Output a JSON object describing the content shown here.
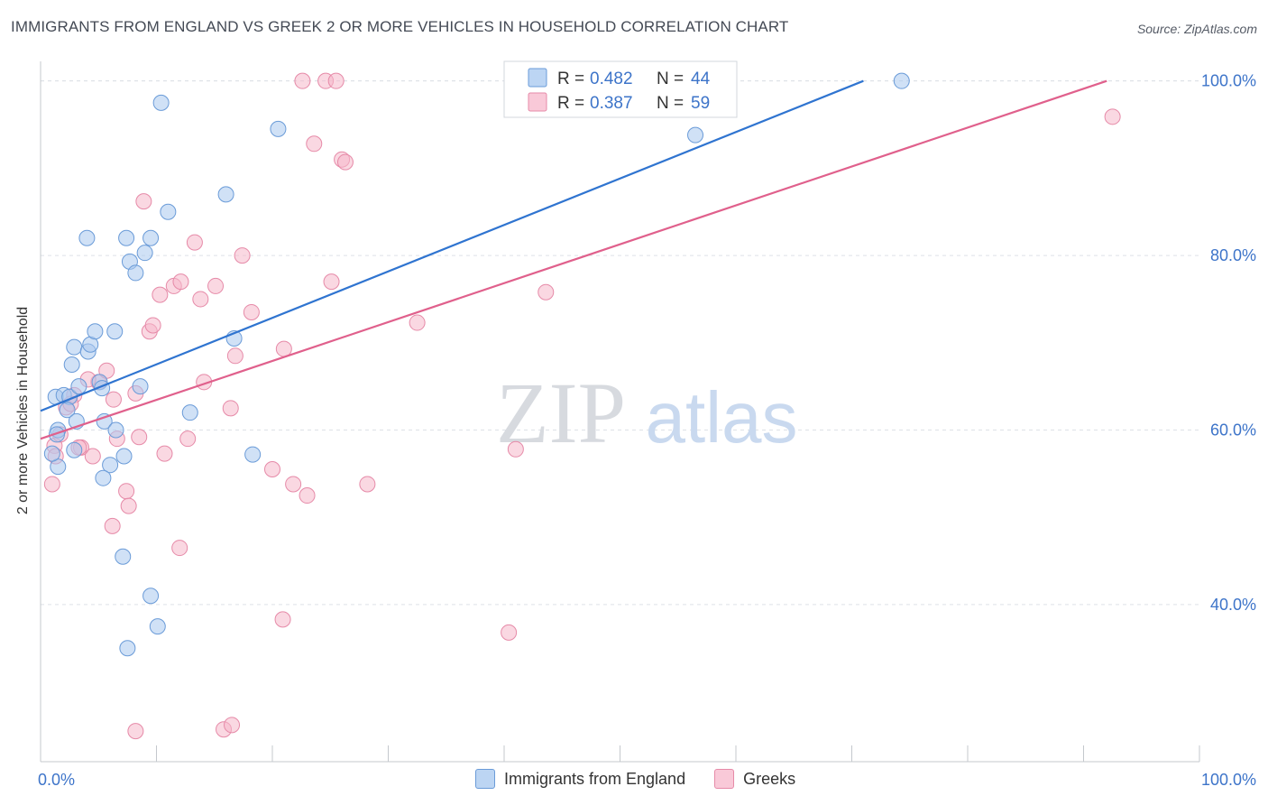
{
  "title": "IMMIGRANTS FROM ENGLAND VS GREEK 2 OR MORE VEHICLES IN HOUSEHOLD CORRELATION CHART",
  "source": "Source: ZipAtlas.com",
  "watermark": {
    "zip": "ZIP",
    "atlas": "atlas"
  },
  "legend": {
    "series1": "Immigrants from England",
    "series2": "Greeks"
  },
  "stats": {
    "r_label": "R =",
    "n_label": "N =",
    "series1": {
      "r": "0.482",
      "n": "44"
    },
    "series2": {
      "r": "0.387",
      "n": "59"
    }
  },
  "colors": {
    "blue_fill": "#a9c8ef",
    "blue_stroke": "#6a9bd8",
    "blue_line": "#2f74d0",
    "pink_fill": "#f6b8cb",
    "pink_stroke": "#e68aa8",
    "pink_line": "#e0608c",
    "axis_text": "#3d74c9",
    "grid": "#dde1e6"
  },
  "chart_data": {
    "type": "scatter",
    "xlabel": "",
    "ylabel": "2 or more Vehicles in Household",
    "xlim": [
      0,
      100
    ],
    "ylim": [
      22,
      101
    ],
    "x_tick_labels": [
      "0.0%",
      "100.0%"
    ],
    "y_ticks": [
      40,
      60,
      80,
      100
    ],
    "y_tick_labels": [
      "40.0%",
      "60.0%",
      "80.0%",
      "100.0%"
    ],
    "series": [
      {
        "name": "Immigrants from England",
        "trend": {
          "x0": 0,
          "y0": 62.2,
          "x1": 71,
          "y1": 100
        },
        "points": [
          [
            1.3,
            63.8
          ],
          [
            1.5,
            60.0
          ],
          [
            1.4,
            59.5
          ],
          [
            2.0,
            64.0
          ],
          [
            2.5,
            63.8
          ],
          [
            2.3,
            62.3
          ],
          [
            2.7,
            67.5
          ],
          [
            2.9,
            69.5
          ],
          [
            3.1,
            61.0
          ],
          [
            3.3,
            65.0
          ],
          [
            4.1,
            69.0
          ],
          [
            4.3,
            69.8
          ],
          [
            4.7,
            71.3
          ],
          [
            5.1,
            65.5
          ],
          [
            5.3,
            64.8
          ],
          [
            5.5,
            61.0
          ],
          [
            6.0,
            56.0
          ],
          [
            6.4,
            71.3
          ],
          [
            6.5,
            60.0
          ],
          [
            7.2,
            57.0
          ],
          [
            7.4,
            82.0
          ],
          [
            7.7,
            79.3
          ],
          [
            8.2,
            78.0
          ],
          [
            8.6,
            65.0
          ],
          [
            9.0,
            80.3
          ],
          [
            9.5,
            82.0
          ],
          [
            10.4,
            97.5
          ],
          [
            11.0,
            85.0
          ],
          [
            12.9,
            62.0
          ],
          [
            16.0,
            87.0
          ],
          [
            16.7,
            70.5
          ],
          [
            18.3,
            57.2
          ],
          [
            20.5,
            94.5
          ],
          [
            4.0,
            82.0
          ],
          [
            1.5,
            55.8
          ],
          [
            2.9,
            57.7
          ],
          [
            5.4,
            54.5
          ],
          [
            7.1,
            45.5
          ],
          [
            9.5,
            41.0
          ],
          [
            10.1,
            37.5
          ],
          [
            7.5,
            35.0
          ],
          [
            74.3,
            100.0
          ],
          [
            56.5,
            93.8
          ],
          [
            1.0,
            57.3
          ]
        ]
      },
      {
        "name": "Greeks",
        "trend": {
          "x0": 0,
          "y0": 59.0,
          "x1": 92,
          "y1": 100
        },
        "points": [
          [
            1.0,
            53.8
          ],
          [
            1.2,
            58.2
          ],
          [
            1.7,
            59.5
          ],
          [
            2.2,
            62.6
          ],
          [
            2.9,
            64.0
          ],
          [
            3.5,
            58.0
          ],
          [
            4.5,
            57.0
          ],
          [
            5.0,
            65.5
          ],
          [
            5.7,
            66.8
          ],
          [
            6.3,
            63.5
          ],
          [
            6.6,
            59.0
          ],
          [
            7.4,
            53.0
          ],
          [
            7.6,
            51.3
          ],
          [
            8.2,
            64.2
          ],
          [
            8.5,
            59.2
          ],
          [
            8.9,
            86.2
          ],
          [
            9.4,
            71.3
          ],
          [
            9.7,
            72.0
          ],
          [
            10.3,
            75.5
          ],
          [
            10.7,
            57.3
          ],
          [
            11.5,
            76.5
          ],
          [
            12.1,
            77.0
          ],
          [
            12.7,
            59.0
          ],
          [
            13.3,
            81.5
          ],
          [
            13.8,
            75.0
          ],
          [
            14.1,
            65.5
          ],
          [
            15.1,
            76.5
          ],
          [
            16.4,
            62.5
          ],
          [
            16.8,
            68.5
          ],
          [
            17.4,
            80.0
          ],
          [
            18.2,
            73.5
          ],
          [
            20.0,
            55.5
          ],
          [
            21.0,
            69.3
          ],
          [
            21.8,
            53.8
          ],
          [
            22.6,
            100.0
          ],
          [
            23.0,
            52.5
          ],
          [
            23.6,
            92.8
          ],
          [
            24.6,
            100.0
          ],
          [
            25.5,
            100.0
          ],
          [
            25.1,
            77.0
          ],
          [
            26.0,
            91.0
          ],
          [
            26.3,
            90.7
          ],
          [
            28.2,
            53.8
          ],
          [
            32.5,
            72.3
          ],
          [
            41.0,
            57.8
          ],
          [
            43.6,
            75.8
          ],
          [
            52.0,
            100.0
          ],
          [
            92.5,
            95.9
          ],
          [
            8.2,
            25.5
          ],
          [
            15.8,
            25.7
          ],
          [
            16.5,
            26.2
          ],
          [
            20.9,
            38.3
          ],
          [
            40.4,
            36.8
          ],
          [
            6.2,
            49.0
          ],
          [
            12.0,
            46.5
          ],
          [
            4.1,
            65.8
          ],
          [
            2.6,
            63.0
          ],
          [
            1.3,
            57.0
          ],
          [
            3.3,
            58.0
          ]
        ]
      }
    ]
  }
}
